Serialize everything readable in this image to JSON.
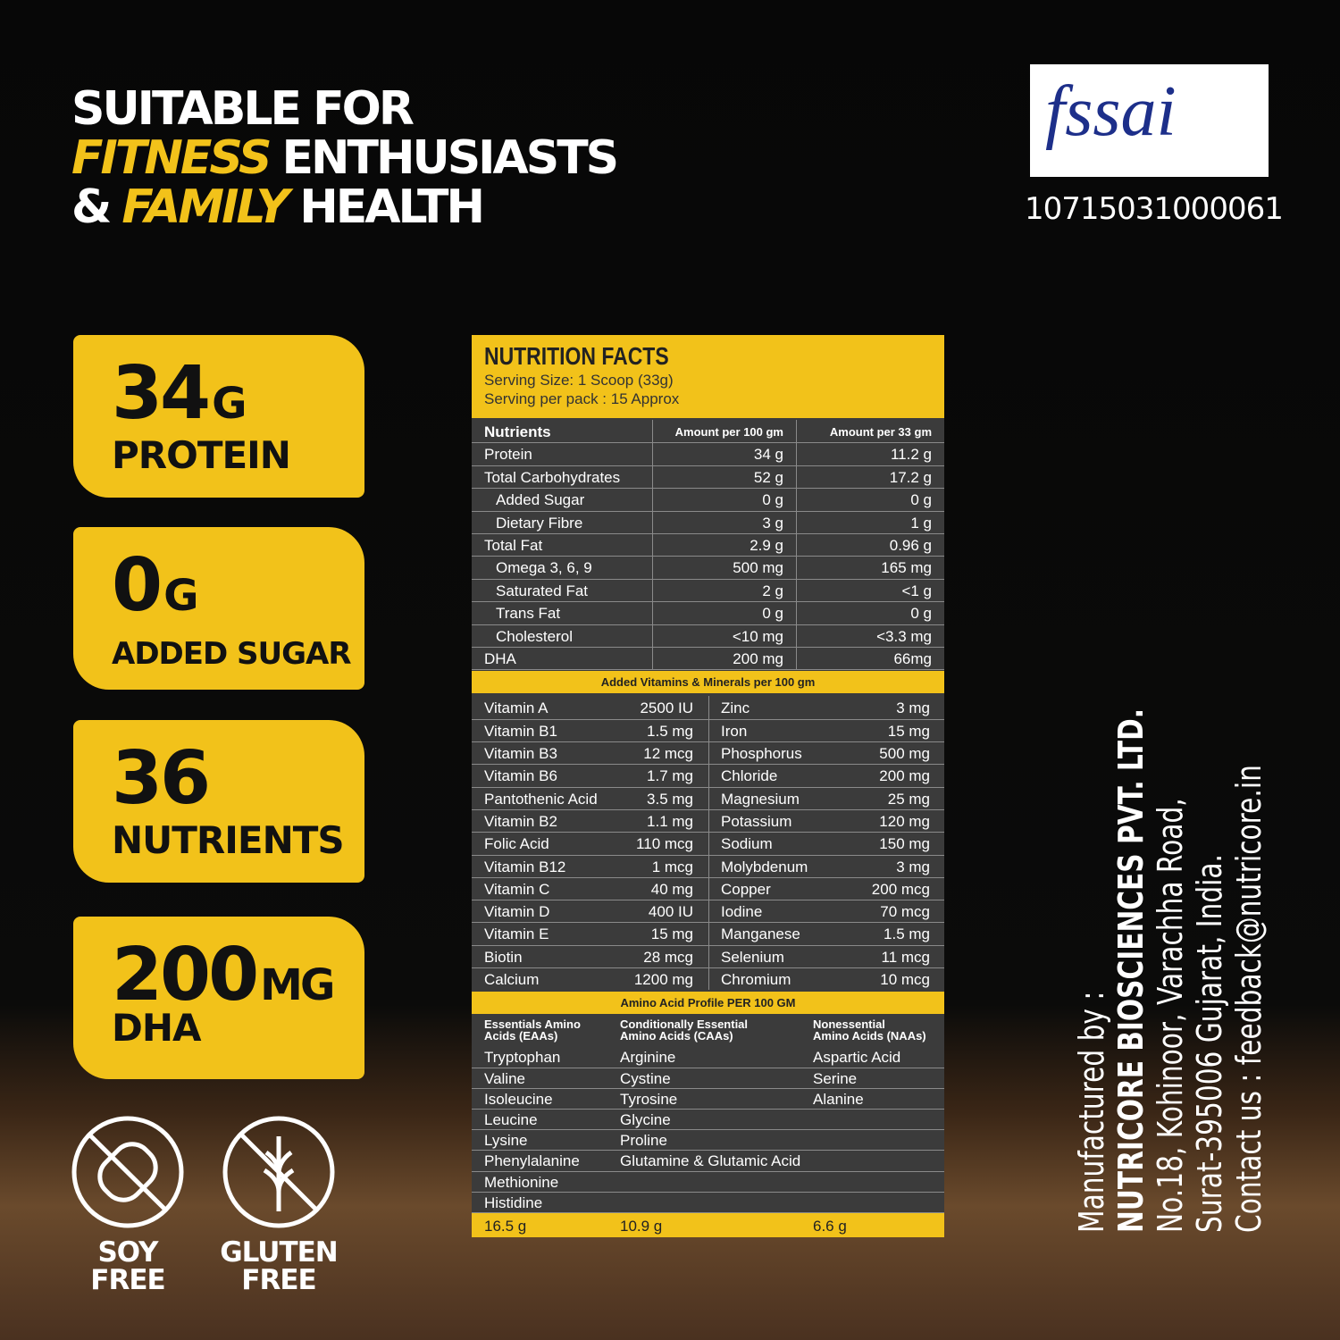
{
  "headline": {
    "lines": [
      [
        {
          "text": "SUITABLE FOR",
          "accent": false
        }
      ],
      [
        {
          "text": "FITNESS",
          "accent": true
        },
        {
          "text": "ENTHUSIASTS",
          "accent": false
        }
      ],
      [
        {
          "text": "&",
          "accent": false
        },
        {
          "text": "FAMILY",
          "accent": true
        },
        {
          "text": "HEALTH",
          "accent": false
        }
      ]
    ]
  },
  "certification": {
    "logo": "fssai",
    "license": "10715031000061"
  },
  "badges": [
    {
      "number": "34",
      "unit": "G",
      "label": "PROTEIN"
    },
    {
      "number": "0",
      "unit": "G",
      "label": "ADDED SUGAR"
    },
    {
      "number": "36",
      "label": "NUTRIENTS"
    },
    {
      "number": "200",
      "unit": "MG",
      "label": "DHA"
    }
  ],
  "free_icons": [
    {
      "lines": [
        "SOY",
        "FREE"
      ]
    },
    {
      "lines": [
        "GLUTEN",
        "FREE"
      ]
    }
  ],
  "nutrition": {
    "title": "NUTRITION FACTS",
    "serving_size": "Serving Size: 1 Scoop (33g)",
    "servings": "Serving per pack : 15 Approx",
    "header": [
      "Nutrients",
      "Amount per 100 gm",
      "Amount per 33 gm"
    ],
    "rows": [
      {
        "name": "Protein",
        "per100": "34 g",
        "per33": "11.2 g",
        "indent": false
      },
      {
        "name": "Total Carbohydrates",
        "per100": "52 g",
        "per33": "17.2 g",
        "indent": false
      },
      {
        "name": "Added Sugar",
        "per100": "0 g",
        "per33": "0 g",
        "indent": true
      },
      {
        "name": "Dietary Fibre",
        "per100": "3 g",
        "per33": "1 g",
        "indent": true
      },
      {
        "name": "Total Fat",
        "per100": "2.9 g",
        "per33": "0.96 g",
        "indent": false
      },
      {
        "name": "Omega 3, 6, 9",
        "per100": "500 mg",
        "per33": "165 mg",
        "indent": true
      },
      {
        "name": "Saturated Fat",
        "per100": "2 g",
        "per33": "<1 g",
        "indent": true
      },
      {
        "name": "Trans Fat",
        "per100": "0 g",
        "per33": "0 g",
        "indent": true
      },
      {
        "name": "Cholesterol",
        "per100": "<10 mg",
        "per33": "<3.3 mg",
        "indent": true
      },
      {
        "name": "DHA",
        "per100": "200 mg",
        "per33": "66mg",
        "indent": false
      }
    ],
    "vitamins_title": "Added Vitamins & Minerals per 100 gm",
    "vitamins": [
      [
        "Vitamin A",
        "2500 IU",
        "Zinc",
        "3 mg"
      ],
      [
        "Vitamin B1",
        "1.5 mg",
        "Iron",
        "15 mg"
      ],
      [
        "Vitamin B3",
        "12 mcg",
        "Phosphorus",
        "500 mg"
      ],
      [
        "Vitamin B6",
        "1.7 mg",
        "Chloride",
        "200 mg"
      ],
      [
        "Pantothenic Acid",
        "3.5 mg",
        "Magnesium",
        "25 mg"
      ],
      [
        "Vitamin B2",
        "1.1 mg",
        "Potassium",
        "120 mg"
      ],
      [
        "Folic Acid",
        "110 mcg",
        "Sodium",
        "150 mg"
      ],
      [
        "Vitamin B12",
        "1 mcg",
        "Molybdenum",
        "3 mg"
      ],
      [
        "Vitamin C",
        "40 mg",
        "Copper",
        "200 mcg"
      ],
      [
        "Vitamin D",
        "400 IU",
        "Iodine",
        "70 mcg"
      ],
      [
        "Vitamin E",
        "15 mg",
        "Manganese",
        "1.5 mg"
      ],
      [
        "Biotin",
        "28 mcg",
        "Selenium",
        "11 mcg"
      ],
      [
        "Calcium",
        "1200 mg",
        "Chromium",
        "10 mcg"
      ]
    ],
    "amino_title": "Amino Acid Profile PER 100 GM",
    "amino_columns": [
      {
        "header": [
          "Essentials Amino",
          "Acids (EAAs)"
        ],
        "items": [
          "Tryptophan",
          "Valine",
          "Isoleucine",
          "Leucine",
          "Lysine",
          "Phenylalanine",
          "Methionine",
          "Histidine"
        ],
        "total": "16.5 g"
      },
      {
        "header": [
          "Conditionally Essential",
          "Amino Acids (CAAs)"
        ],
        "items": [
          "Arginine",
          "Cystine",
          "Tyrosine",
          "Glycine",
          "Proline",
          "Glutamine & Glutamic Acid"
        ],
        "total": "10.9 g"
      },
      {
        "header": [
          "Nonessential",
          "Amino Acids (NAAs)"
        ],
        "items": [
          "Aspartic Acid",
          "Serine",
          "Alanine"
        ],
        "total": "6.6 g"
      }
    ]
  },
  "manufacturer": {
    "lines": [
      "Manufactured by :",
      "NUTRICORE BIOSCIENCES PVT. LTD.",
      "No.18, Kohinoor, Varachha Road,",
      "Surat-395006 Gujarat, India.",
      "Contact us : feedback@nutricore.in"
    ]
  }
}
